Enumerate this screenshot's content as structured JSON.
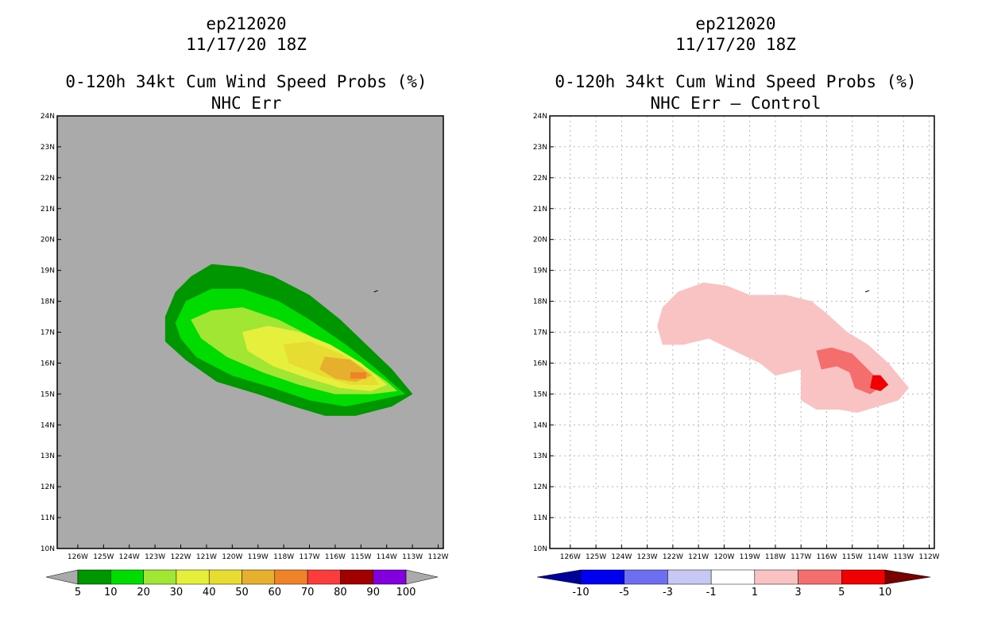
{
  "left": {
    "title_line1": "ep212020",
    "title_line2": "11/17/20 18Z",
    "title_line3": "0-120h 34kt Cum Wind Speed Probs (%)",
    "title_line4": "NHC Err"
  },
  "right": {
    "title_line1": "ep212020",
    "title_line2": "11/17/20 18Z",
    "title_line3": "0-120h 34kt Cum Wind Speed Probs (%)",
    "title_line4": "NHC Err – Control"
  },
  "chart_data": [
    {
      "type": "heatmap",
      "title": "0-120h 34kt Cum Wind Speed Probs (%) NHC Err",
      "x_tick_labels": [
        "126W",
        "125W",
        "124W",
        "123W",
        "122W",
        "121W",
        "120W",
        "119W",
        "118W",
        "117W",
        "116W",
        "115W",
        "114W",
        "113W",
        "112W"
      ],
      "y_tick_labels": [
        "10N",
        "11N",
        "12N",
        "13N",
        "14N",
        "15N",
        "16N",
        "17N",
        "18N",
        "19N",
        "20N",
        "21N",
        "22N",
        "23N",
        "24N"
      ],
      "xlim": [
        -126.8,
        -111.8
      ],
      "ylim": [
        10,
        24
      ],
      "background_color": "#aaaaaa",
      "colorbar": {
        "labels": [
          "5",
          "10",
          "20",
          "30",
          "40",
          "50",
          "60",
          "70",
          "80",
          "90",
          "100"
        ],
        "colors": [
          "#009600",
          "#00dc00",
          "#a0e632",
          "#e6f03c",
          "#e6dc32",
          "#e6af2d",
          "#f08228",
          "#fa3c3c",
          "#a00000",
          "#8200dc"
        ]
      },
      "contours": [
        {
          "level": 5,
          "color": "#009600",
          "points": [
            [
              -122.6,
              17.5
            ],
            [
              -122.2,
              18.3
            ],
            [
              -121.6,
              18.8
            ],
            [
              -120.8,
              19.2
            ],
            [
              -119.6,
              19.1
            ],
            [
              -118.4,
              18.8
            ],
            [
              -117.0,
              18.2
            ],
            [
              -115.8,
              17.4
            ],
            [
              -114.8,
              16.6
            ],
            [
              -113.8,
              15.8
            ],
            [
              -113.0,
              15.0
            ],
            [
              -113.8,
              14.6
            ],
            [
              -115.2,
              14.3
            ],
            [
              -116.4,
              14.3
            ],
            [
              -117.6,
              14.6
            ],
            [
              -119.0,
              15.0
            ],
            [
              -120.6,
              15.4
            ],
            [
              -121.8,
              16.1
            ],
            [
              -122.6,
              16.7
            ]
          ]
        },
        {
          "level": 10,
          "color": "#00dc00",
          "points": [
            [
              -122.2,
              17.3
            ],
            [
              -121.8,
              18.0
            ],
            [
              -120.8,
              18.4
            ],
            [
              -119.6,
              18.4
            ],
            [
              -118.2,
              18.0
            ],
            [
              -117.0,
              17.4
            ],
            [
              -115.6,
              16.6
            ],
            [
              -114.4,
              15.8
            ],
            [
              -113.3,
              15.0
            ],
            [
              -114.4,
              14.8
            ],
            [
              -115.6,
              14.6
            ],
            [
              -117.0,
              14.8
            ],
            [
              -118.4,
              15.2
            ],
            [
              -120.0,
              15.6
            ],
            [
              -121.4,
              16.2
            ],
            [
              -122.0,
              16.8
            ]
          ]
        },
        {
          "level": 20,
          "color": "#a0e632",
          "points": [
            [
              -121.6,
              17.4
            ],
            [
              -120.8,
              17.7
            ],
            [
              -119.6,
              17.8
            ],
            [
              -118.2,
              17.4
            ],
            [
              -116.8,
              16.8
            ],
            [
              -115.4,
              16.2
            ],
            [
              -114.0,
              15.4
            ],
            [
              -113.6,
              15.1
            ],
            [
              -114.6,
              15.0
            ],
            [
              -116.0,
              15.0
            ],
            [
              -117.4,
              15.3
            ],
            [
              -118.8,
              15.7
            ],
            [
              -120.2,
              16.2
            ],
            [
              -121.2,
              16.8
            ]
          ]
        },
        {
          "level": 30,
          "color": "#e6f03c",
          "points": [
            [
              -119.6,
              17.0
            ],
            [
              -118.6,
              17.2
            ],
            [
              -117.4,
              17.0
            ],
            [
              -116.2,
              16.6
            ],
            [
              -115.0,
              16.0
            ],
            [
              -114.0,
              15.3
            ],
            [
              -114.6,
              15.1
            ],
            [
              -115.8,
              15.2
            ],
            [
              -117.0,
              15.5
            ],
            [
              -118.4,
              15.9
            ],
            [
              -119.4,
              16.4
            ]
          ]
        },
        {
          "level": 40,
          "color": "#e6dc32",
          "points": [
            [
              -118.0,
              16.6
            ],
            [
              -117.0,
              16.7
            ],
            [
              -115.8,
              16.3
            ],
            [
              -114.6,
              15.7
            ],
            [
              -114.3,
              15.3
            ],
            [
              -115.4,
              15.3
            ],
            [
              -116.6,
              15.6
            ],
            [
              -117.8,
              16.0
            ]
          ]
        },
        {
          "level": 50,
          "color": "#e6af2d",
          "points": [
            [
              -116.4,
              16.2
            ],
            [
              -115.4,
              16.1
            ],
            [
              -114.6,
              15.6
            ],
            [
              -115.2,
              15.4
            ],
            [
              -116.0,
              15.5
            ],
            [
              -116.6,
              15.8
            ]
          ]
        },
        {
          "level": 60,
          "color": "#f08228",
          "points": [
            [
              -115.4,
              15.7
            ],
            [
              -114.8,
              15.7
            ],
            [
              -114.8,
              15.5
            ],
            [
              -115.4,
              15.5
            ]
          ]
        }
      ]
    },
    {
      "type": "heatmap",
      "title": "0-120h 34kt Cum Wind Speed Probs (%) NHC Err – Control",
      "x_tick_labels": [
        "126W",
        "125W",
        "124W",
        "123W",
        "122W",
        "121W",
        "120W",
        "119W",
        "118W",
        "117W",
        "116W",
        "115W",
        "114W",
        "113W",
        "112W"
      ],
      "y_tick_labels": [
        "10N",
        "11N",
        "12N",
        "13N",
        "14N",
        "15N",
        "16N",
        "17N",
        "18N",
        "19N",
        "20N",
        "21N",
        "22N",
        "23N",
        "24N"
      ],
      "xlim": [
        -126.8,
        -111.8
      ],
      "ylim": [
        10,
        24
      ],
      "grid": true,
      "background_color": "#ffffff",
      "colorbar": {
        "labels": [
          "-10",
          "-5",
          "-3",
          "-1",
          "1",
          "3",
          "5",
          "10"
        ],
        "colors": [
          "#00009b",
          "#0000f0",
          "#6e6ef0",
          "#c8c8f5",
          "#ffffff",
          "#fac3c3",
          "#f56e6e",
          "#f00000",
          "#780000"
        ]
      },
      "contours": [
        {
          "level": 1,
          "color": "#fac3c3",
          "points": [
            [
              -122.4,
              17.8
            ],
            [
              -121.8,
              18.3
            ],
            [
              -120.8,
              18.6
            ],
            [
              -119.9,
              18.5
            ],
            [
              -119.0,
              18.2
            ],
            [
              -117.6,
              18.2
            ],
            [
              -116.6,
              18.0
            ],
            [
              -116.0,
              17.6
            ],
            [
              -115.2,
              17.0
            ],
            [
              -114.4,
              16.6
            ],
            [
              -113.6,
              16.0
            ],
            [
              -112.8,
              15.2
            ],
            [
              -113.2,
              14.8
            ],
            [
              -114.0,
              14.6
            ],
            [
              -114.8,
              14.4
            ],
            [
              -115.5,
              14.5
            ],
            [
              -116.4,
              14.5
            ],
            [
              -117.0,
              14.8
            ],
            [
              -117.0,
              15.8
            ],
            [
              -118.0,
              15.6
            ],
            [
              -118.6,
              16.0
            ],
            [
              -119.6,
              16.4
            ],
            [
              -120.6,
              16.8
            ],
            [
              -121.6,
              16.6
            ],
            [
              -122.4,
              16.6
            ],
            [
              -122.6,
              17.2
            ]
          ]
        },
        {
          "level": 3,
          "color": "#f56e6e",
          "points": [
            [
              -116.4,
              16.4
            ],
            [
              -115.8,
              16.5
            ],
            [
              -115.0,
              16.3
            ],
            [
              -114.4,
              15.8
            ],
            [
              -113.8,
              15.3
            ],
            [
              -114.3,
              15.0
            ],
            [
              -114.9,
              15.2
            ],
            [
              -115.1,
              15.7
            ],
            [
              -115.6,
              15.9
            ],
            [
              -116.2,
              15.8
            ]
          ]
        },
        {
          "level": 5,
          "color": "#f00000",
          "points": [
            [
              -114.2,
              15.6
            ],
            [
              -113.9,
              15.6
            ],
            [
              -113.6,
              15.3
            ],
            [
              -113.9,
              15.1
            ],
            [
              -114.3,
              15.2
            ]
          ]
        }
      ]
    }
  ]
}
